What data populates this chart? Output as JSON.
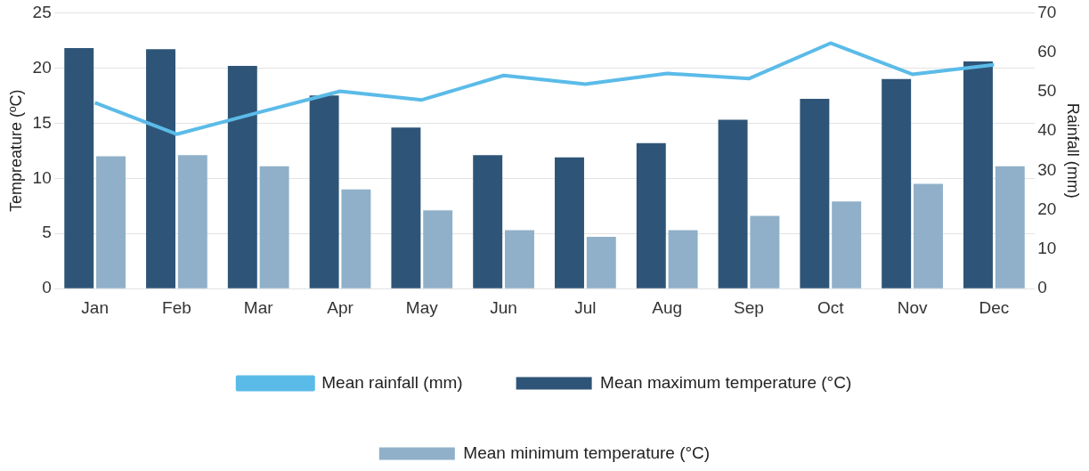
{
  "chart_data": {
    "type": "bar",
    "ylabel": "Tempreature (ºC)",
    "y2label": "Rainfall (mm)",
    "categories": [
      "Jan",
      "Feb",
      "Mar",
      "Apr",
      "May",
      "Jun",
      "Jul",
      "Aug",
      "Sep",
      "Oct",
      "Nov",
      "Dec"
    ],
    "series": [
      {
        "name": "Mean maximum temperature (°C)",
        "color": "#2e5577",
        "values": [
          21.8,
          21.7,
          20.2,
          17.5,
          14.6,
          12.1,
          11.9,
          13.2,
          15.3,
          17.2,
          19.0,
          20.6
        ]
      },
      {
        "name": "Mean minimum temperature (°C)",
        "color": "#8fb0c8",
        "values": [
          12.0,
          12.1,
          11.1,
          9.0,
          7.1,
          5.3,
          4.7,
          5.3,
          6.6,
          7.9,
          9.5,
          11.1
        ]
      },
      {
        "name": "Mean rainfall (mm)",
        "type": "line",
        "axis": "y2",
        "color": "#5bbbe8",
        "values": [
          47.2,
          39.2,
          44.7,
          50.1,
          47.9,
          54.1,
          51.9,
          54.6,
          53.3,
          62.3,
          54.4,
          56.8
        ]
      }
    ],
    "ylim": [
      0,
      25
    ],
    "yticks": [
      0,
      5,
      10,
      15,
      20,
      25
    ],
    "y2lim": [
      0,
      70
    ],
    "y2ticks": [
      0,
      10,
      20,
      30,
      40,
      50,
      60,
      70
    ],
    "grid": "y",
    "legend": "bottom",
    "marker": "none"
  }
}
